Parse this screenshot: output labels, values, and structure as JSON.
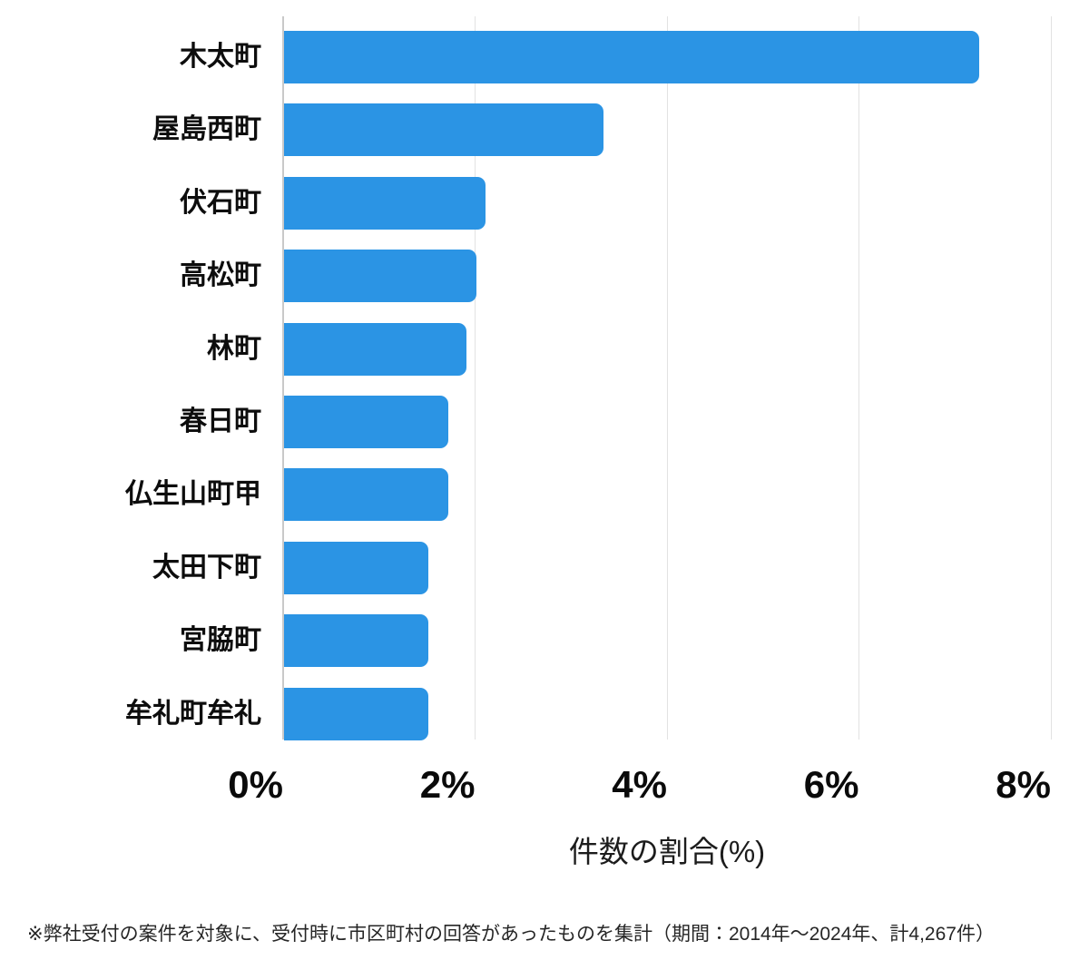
{
  "chart_data": {
    "type": "bar",
    "orientation": "horizontal",
    "title": "",
    "categories": [
      "木太町",
      "屋島西町",
      "伏石町",
      "高松町",
      "林町",
      "春日町",
      "仏生山町甲",
      "太田下町",
      "宮脇町",
      "牟礼町牟礼"
    ],
    "values": [
      7.24,
      3.33,
      2.1,
      2.0,
      1.9,
      1.71,
      1.71,
      1.5,
      1.5,
      1.5
    ],
    "unit": "%",
    "xlabel": "件数の割合(%)",
    "ylabel": "",
    "x_ticks": [
      "0%",
      "2%",
      "4%",
      "6%",
      "8%"
    ],
    "x_tick_values": [
      0,
      2,
      4,
      6,
      8
    ],
    "xlim": [
      0,
      8
    ],
    "grid": "vertical-only",
    "legend": "none",
    "bar_color": "#2b94e4",
    "grid_color": "#e2e2e2",
    "zero_line_color": "#c9c9c9",
    "label_color": "#0d0d0d"
  },
  "footnote": "※弊社受付の案件を対象に、受付時に市区町村の回答があったものを集計（期間：2014年〜2024年、計4,267件）"
}
